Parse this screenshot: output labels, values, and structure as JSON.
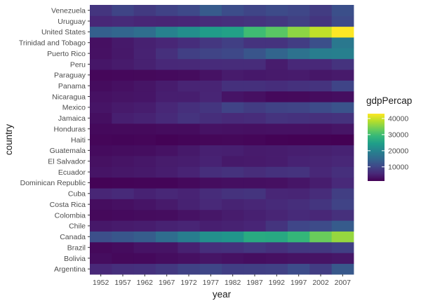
{
  "chart_data": {
    "type": "heatmap",
    "xlabel": "year",
    "ylabel": "country",
    "x": [
      "1952",
      "1957",
      "1962",
      "1967",
      "1972",
      "1977",
      "1982",
      "1987",
      "1992",
      "1997",
      "2002",
      "2007"
    ],
    "y": [
      "Argentina",
      "Bolivia",
      "Brazil",
      "Canada",
      "Chile",
      "Colombia",
      "Costa Rica",
      "Cuba",
      "Dominican Republic",
      "Ecuador",
      "El Salvador",
      "Guatemala",
      "Haiti",
      "Honduras",
      "Jamaica",
      "Mexico",
      "Nicaragua",
      "Panama",
      "Paraguay",
      "Peru",
      "Puerto Rico",
      "Trinidad and Tobago",
      "United States",
      "Uruguay",
      "Venezuela"
    ],
    "values": [
      [
        5911,
        6857,
        7133,
        8053,
        9443,
        10079,
        8998,
        9140,
        9308,
        10967,
        8798,
        12779
      ],
      [
        2677,
        2128,
        2181,
        2587,
        2980,
        3548,
        3157,
        2754,
        2962,
        3327,
        3413,
        3822
      ],
      [
        2109,
        2487,
        3337,
        3430,
        4986,
        6660,
        7031,
        7807,
        6950,
        7958,
        8131,
        9066
      ],
      [
        11367,
        12490,
        13462,
        16077,
        18971,
        22091,
        22899,
        26627,
        26343,
        28955,
        33329,
        36319
      ],
      [
        3940,
        4316,
        4519,
        5107,
        5494,
        4757,
        5096,
        5547,
        7597,
        10118,
        10779,
        13172
      ],
      [
        2144,
        2324,
        2493,
        2679,
        3265,
        3816,
        4398,
        4903,
        5445,
        6117,
        5755,
        7007
      ],
      [
        2628,
        2990,
        3461,
        4162,
        5118,
        5927,
        5263,
        5630,
        6161,
        6677,
        7723,
        9645
      ],
      [
        5587,
        6093,
        5181,
        5690,
        5305,
        6381,
        7317,
        7533,
        5593,
        5432,
        6341,
        8948
      ],
      [
        1398,
        1545,
        1662,
        1654,
        2190,
        2681,
        2862,
        2900,
        3045,
        3614,
        4564,
        6025
      ],
      [
        3522,
        3781,
        4086,
        4580,
        5281,
        6680,
        7214,
        6482,
        7104,
        7429,
        5773,
        6873
      ],
      [
        3048,
        3422,
        3776,
        4359,
        4520,
        5139,
        4099,
        4141,
        4445,
        5155,
        5352,
        5728
      ],
      [
        2428,
        2618,
        2751,
        3243,
        4032,
        4880,
        4820,
        4246,
        4439,
        4685,
        4858,
        5186
      ],
      [
        1840,
        1726,
        1797,
        1452,
        1654,
        1874,
        2011,
        1823,
        1456,
        1342,
        1270,
        1202
      ],
      [
        2195,
        2220,
        2292,
        2538,
        2529,
        3204,
        3121,
        3024,
        3082,
        3160,
        3099,
        3548
      ],
      [
        2899,
        4757,
        5246,
        6125,
        7434,
        6650,
        6068,
        6351,
        7405,
        7122,
        6995,
        7321
      ],
      [
        3478,
        4132,
        4582,
        5755,
        6809,
        7675,
        9611,
        8688,
        9472,
        9767,
        10742,
        11978
      ],
      [
        3112,
        3457,
        3634,
        4644,
        4689,
        5486,
        3470,
        2955,
        2171,
        2253,
        2475,
        2749
      ],
      [
        2480,
        2961,
        3536,
        4421,
        5365,
        5351,
        7010,
        7034,
        6619,
        7113,
        7357,
        9809
      ],
      [
        1953,
        2049,
        2148,
        2299,
        2523,
        3248,
        4259,
        3999,
        4197,
        4248,
        3784,
        4173
      ],
      [
        3759,
        4245,
        4957,
        5788,
        5938,
        6281,
        6435,
        6361,
        4446,
        5838,
        5909,
        7409
      ],
      [
        3082,
        3908,
        5108,
        6930,
        9123,
        9770,
        10331,
        12281,
        14642,
        16999,
        18856,
        19329
      ],
      [
        3023,
        4100,
        4997,
        5621,
        6619,
        7900,
        9119,
        7388,
        7371,
        8793,
        11461,
        18009
      ],
      [
        13990,
        14847,
        16173,
        19530,
        21806,
        24073,
        25010,
        29884,
        32004,
        35767,
        39097,
        42952
      ],
      [
        5717,
        6150,
        5603,
        5445,
        5703,
        6504,
        6920,
        7452,
        8137,
        9231,
        7727,
        10611
      ],
      [
        7690,
        9803,
        8423,
        9541,
        10505,
        13144,
        11153,
        9884,
        10734,
        10165,
        8605,
        11416
      ]
    ],
    "color_scale": {
      "name": "viridis",
      "min": 1202,
      "max": 43000,
      "stops": [
        "#440154",
        "#482878",
        "#3e4989",
        "#31688e",
        "#26828e",
        "#1f9e89",
        "#35b779",
        "#6ece58",
        "#b5de2b",
        "#fde725"
      ]
    },
    "legend": {
      "title": "gdpPercap",
      "ticks": [
        10000,
        20000,
        30000,
        40000
      ],
      "placement": "right"
    },
    "panel_background": "#ebebeb"
  }
}
